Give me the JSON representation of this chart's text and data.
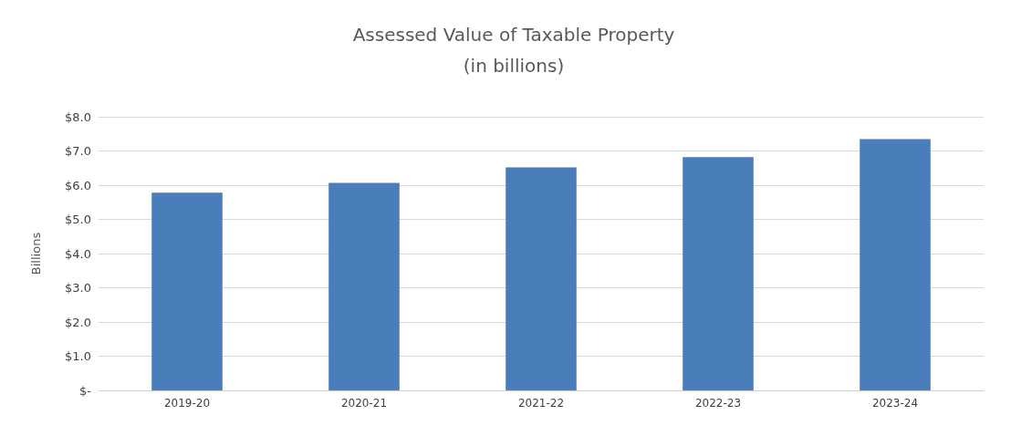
{
  "chart_data": {
    "type": "bar",
    "title": "Assessed Value of Taxable Property\n(in billions)",
    "ylabel": "Billions",
    "categories": [
      "2019-20",
      "2020-21",
      "2021-22",
      "2022-23",
      "2023-24"
    ],
    "values": [
      5.78,
      6.07,
      6.52,
      6.82,
      7.35
    ],
    "color": "#4a7ebb",
    "ylim": [
      0,
      8
    ],
    "yticks": [
      {
        "value": 0,
        "label": "$-"
      },
      {
        "value": 1,
        "label": "$1.0"
      },
      {
        "value": 2,
        "label": "$2.0"
      },
      {
        "value": 3,
        "label": "$3.0"
      },
      {
        "value": 4,
        "label": "$4.0"
      },
      {
        "value": 5,
        "label": "$5.0"
      },
      {
        "value": 6,
        "label": "$6.0"
      },
      {
        "value": 7,
        "label": "$7.0"
      },
      {
        "value": 8,
        "label": "$8.0"
      }
    ],
    "grid": "y"
  }
}
